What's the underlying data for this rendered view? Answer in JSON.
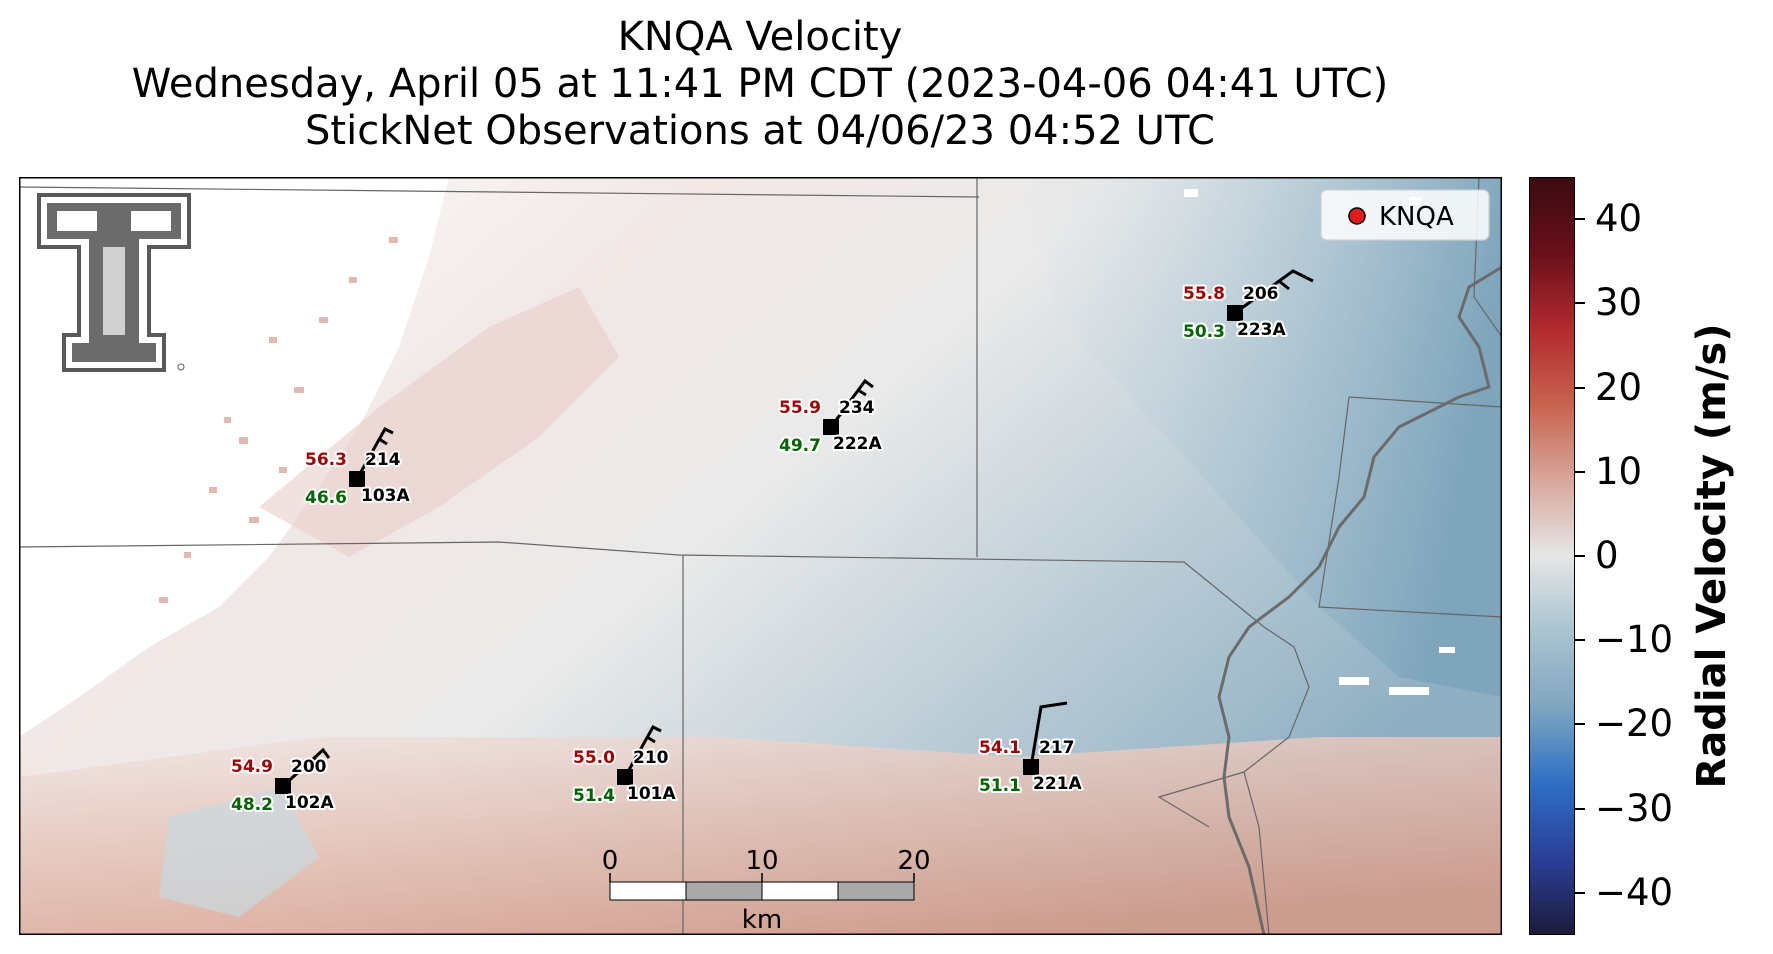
{
  "titles": {
    "line1": "KNQA Velocity",
    "line2": "Wednesday, April 05 at 11:41 PM CDT (2023-04-06 04:41 UTC)",
    "line3": "StickNet Observations at 04/06/23 04:52 UTC"
  },
  "legend": {
    "label": "KNQA",
    "marker_color": "#e31a1c"
  },
  "colorbar": {
    "label": "Radial Velocity (m/s)",
    "min": -45,
    "max": 45,
    "ticks": [
      {
        "value": 40,
        "label": "40"
      },
      {
        "value": 30,
        "label": "30"
      },
      {
        "value": 20,
        "label": "20"
      },
      {
        "value": 10,
        "label": "10"
      },
      {
        "value": 0,
        "label": "0"
      },
      {
        "value": -10,
        "label": "−10"
      },
      {
        "value": -20,
        "label": "−20"
      },
      {
        "value": -30,
        "label": "−30"
      },
      {
        "value": -40,
        "label": "−40"
      }
    ],
    "colors": [
      "#1b1b3a",
      "#2b3f99",
      "#2e6fc4",
      "#7fa6c0",
      "#a9c3d1",
      "#e6e6e6",
      "#d8a79b",
      "#c8634e",
      "#b22a2e",
      "#6a0f1a",
      "#3a0b10"
    ]
  },
  "scale_bar": {
    "ticks": [
      "0",
      "10",
      "20"
    ],
    "unit": "km"
  },
  "stations": [
    {
      "id": "103A",
      "temp": "56.3",
      "dew": "46.6",
      "dir": "214"
    },
    {
      "id": "222A",
      "temp": "55.9",
      "dew": "49.7",
      "dir": "234"
    },
    {
      "id": "223A",
      "temp": "55.8",
      "dew": "50.3",
      "dir": "206"
    },
    {
      "id": "102A",
      "temp": "54.9",
      "dew": "48.2",
      "dir": "200"
    },
    {
      "id": "101A",
      "temp": "55.0",
      "dew": "51.4",
      "dir": "210"
    },
    {
      "id": "221A",
      "temp": "54.1",
      "dew": "51.1",
      "dir": "217"
    }
  ],
  "colors": {
    "temp": "#a00000",
    "dew": "#006400",
    "station": "#000000"
  },
  "logo": {
    "text": "TT"
  }
}
